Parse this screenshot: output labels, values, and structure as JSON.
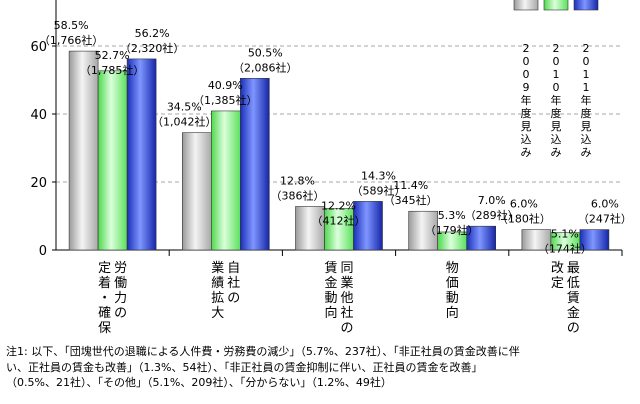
{
  "chart_data": {
    "type": "bar",
    "ylim": [
      0,
      70
    ],
    "yticks": [
      0,
      20,
      40,
      60
    ],
    "grid": true,
    "legend_position": "top-right",
    "categories": [
      {
        "lines": [
          "労働力の",
          "定着・確保"
        ]
      },
      {
        "lines": [
          "自社の",
          "業績拡大"
        ]
      },
      {
        "lines": [
          "同業他社の",
          "賃金動向"
        ]
      },
      {
        "lines": [
          "物価動向"
        ]
      },
      {
        "lines": [
          "最低賃金の",
          "改定"
        ]
      }
    ],
    "series": [
      {
        "name": "2009年度見込み",
        "name_lines": [
          "2009",
          "年度",
          "見込み"
        ],
        "color": "#c8c8c8",
        "values": [
          58.5,
          34.5,
          12.8,
          11.4,
          6.0
        ],
        "labels": [
          [
            "58.5%",
            "（1,766社）"
          ],
          [
            "34.5%",
            "（1,042社）"
          ],
          [
            "12.8%",
            "（386社）"
          ],
          [
            "11.4%",
            "（345社）"
          ],
          [
            "6.0%",
            "（180社）"
          ]
        ]
      },
      {
        "name": "2010年度見込み",
        "name_lines": [
          "2010",
          "年度",
          "見込み"
        ],
        "color": "#7cf07c",
        "values": [
          52.7,
          40.9,
          12.2,
          5.3,
          5.1
        ],
        "labels": [
          [
            "52.7%",
            "（1,785社）"
          ],
          [
            "40.9%",
            "（1,385社）"
          ],
          [
            "12.2%",
            "（412社）"
          ],
          [
            "5.3%",
            "（179社）"
          ],
          [
            "5.1%",
            "（174社）"
          ]
        ]
      },
      {
        "name": "2011年度見込み",
        "name_lines": [
          "2011",
          "年度",
          "見込み"
        ],
        "color": "#2a3fd8",
        "values": [
          56.2,
          50.5,
          14.3,
          7.0,
          6.0
        ],
        "labels": [
          [
            "56.2%",
            "（2,320社）"
          ],
          [
            "50.5%",
            "（2,086社）"
          ],
          [
            "14.3%",
            "（589社）"
          ],
          [
            "7.0%",
            "（289社）"
          ],
          [
            "6.0%",
            "（247社）"
          ]
        ]
      }
    ]
  },
  "note": {
    "lines": [
      "注1: 以下、「団塊世代の退職による人件費・労務費の減少」（5.7%、237社）、「非正社員の賃金改善に伴",
      "い、正社員の賃金も改善」（1.3%、54社）、「非正社員の賃金抑制に伴い、正社員の賃金を改善」",
      "（0.5%、21社）、「その他」（5.1%、209社）、「分からない」（1.2%、49社）"
    ]
  }
}
